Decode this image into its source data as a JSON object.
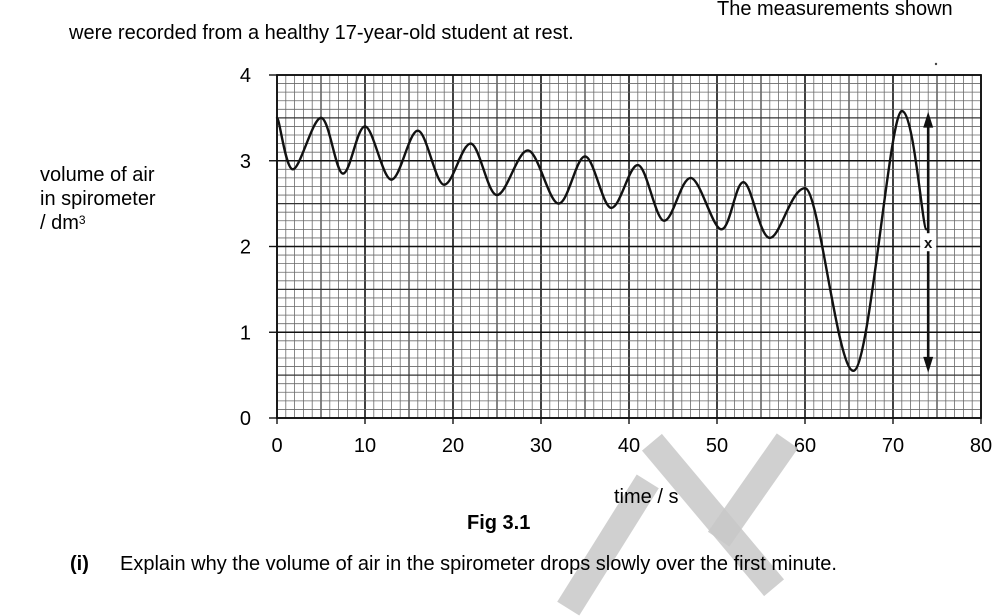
{
  "document": {
    "intro_right": "The measurements shown",
    "intro_left": "were recorded from a healthy 17-year-old student at rest.",
    "figure_caption": "Fig 3.1",
    "question": {
      "number": "(i)",
      "text": "Explain why the volume of air in the spirometer drops slowly over the first minute."
    }
  },
  "chart_data": {
    "type": "line",
    "title": "Fig 3.1",
    "xlabel": "time / s",
    "ylabel_lines": [
      "volume of air",
      "in spirometer",
      "/ dm"
    ],
    "ylabel_superscript": "3",
    "xlim": [
      0,
      80
    ],
    "ylim": [
      0,
      4
    ],
    "x_ticks": [
      0,
      10,
      20,
      30,
      40,
      50,
      60,
      70,
      80
    ],
    "y_ticks": [
      0,
      1,
      2,
      3,
      4
    ],
    "grid": true,
    "grid_minor_step_x": 1,
    "grid_minor_step_y": 0.1,
    "grid_major_step_x": 5,
    "grid_major_step_y": 0.5,
    "series": [
      {
        "name": "volume of air in spirometer",
        "x": [
          0,
          1.8,
          5,
          7.5,
          10,
          13,
          16,
          19,
          22,
          25,
          28.5,
          32,
          35,
          38,
          41,
          44,
          47,
          50.5,
          53,
          56,
          60,
          65.5,
          71,
          73.8
        ],
        "y": [
          3.5,
          2.9,
          3.5,
          2.85,
          3.4,
          2.78,
          3.35,
          2.72,
          3.2,
          2.6,
          3.12,
          2.5,
          3.05,
          2.45,
          2.95,
          2.3,
          2.8,
          2.2,
          2.75,
          2.1,
          2.68,
          0.55,
          3.58,
          2.2
        ]
      }
    ],
    "annotations": [
      {
        "label": "X",
        "type": "double-arrow",
        "x": 74,
        "y_top": 3.55,
        "y_bottom": 0.55
      }
    ]
  }
}
